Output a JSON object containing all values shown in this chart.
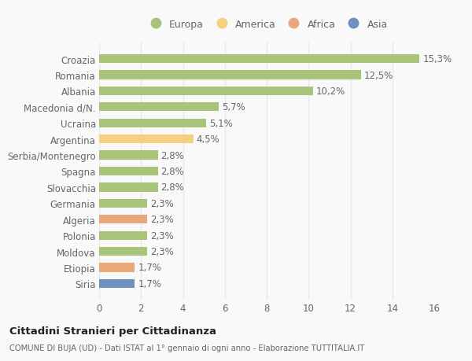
{
  "categories": [
    "Siria",
    "Etiopia",
    "Moldova",
    "Polonia",
    "Algeria",
    "Germania",
    "Slovacchia",
    "Spagna",
    "Serbia/Montenegro",
    "Argentina",
    "Ucraina",
    "Macedonia d/N.",
    "Albania",
    "Romania",
    "Croazia"
  ],
  "values": [
    1.7,
    1.7,
    2.3,
    2.3,
    2.3,
    2.3,
    2.8,
    2.8,
    2.8,
    4.5,
    5.1,
    5.7,
    10.2,
    12.5,
    15.3
  ],
  "labels": [
    "1,7%",
    "1,7%",
    "2,3%",
    "2,3%",
    "2,3%",
    "2,3%",
    "2,8%",
    "2,8%",
    "2,8%",
    "4,5%",
    "5,1%",
    "5,7%",
    "10,2%",
    "12,5%",
    "15,3%"
  ],
  "continents": [
    "Asia",
    "Africa",
    "Europa",
    "Europa",
    "Africa",
    "Europa",
    "Europa",
    "Europa",
    "Europa",
    "America",
    "Europa",
    "Europa",
    "Europa",
    "Europa",
    "Europa"
  ],
  "colors": {
    "Europa": "#a8c47a",
    "America": "#f5d080",
    "Africa": "#e8a87a",
    "Asia": "#7090c0"
  },
  "legend_order": [
    "Europa",
    "America",
    "Africa",
    "Asia"
  ],
  "legend_colors": [
    "#a8c47a",
    "#f5d080",
    "#e8a87a",
    "#7090c0"
  ],
  "xlim": [
    0,
    16
  ],
  "xticks": [
    0,
    2,
    4,
    6,
    8,
    10,
    12,
    14,
    16
  ],
  "title": "Cittadini Stranieri per Cittadinanza",
  "subtitle": "COMUNE DI BUJA (UD) - Dati ISTAT al 1° gennaio di ogni anno - Elaborazione TUTTITALIA.IT",
  "bg_color": "#f9f9f9",
  "bar_height": 0.55,
  "label_fontsize": 8.5,
  "tick_fontsize": 8.5,
  "grid_color": "#e8e8e8"
}
